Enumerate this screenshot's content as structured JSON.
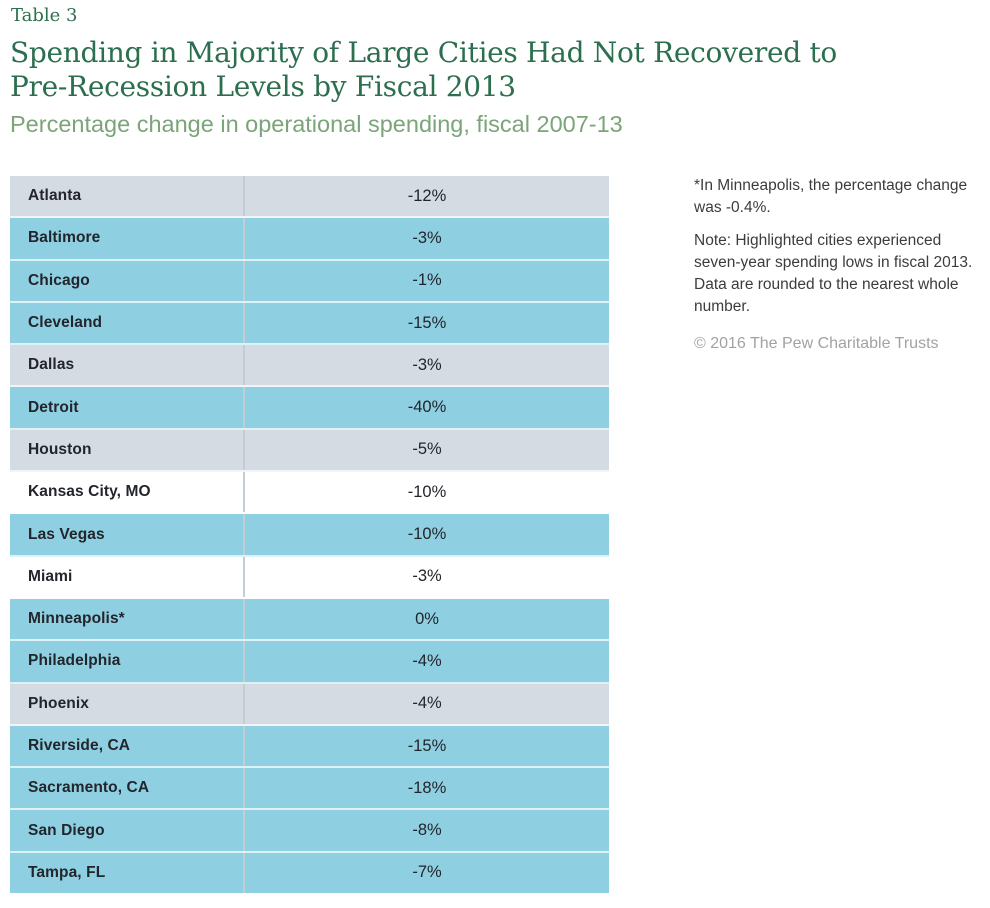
{
  "header": {
    "table_label": "Table 3",
    "title_lines": [
      "Spending in Majority of Large Cities Had Not Recovered to",
      "Pre-Recession Levels by Fiscal 2013"
    ],
    "subtitle": "Percentage change in operational spending, fiscal 2007-13"
  },
  "chart_data": {
    "type": "table",
    "title": "Spending in Majority of Large Cities Had Not Recovered to Pre-Recession Levels by Fiscal 2013",
    "subtitle": "Percentage change in operational spending, fiscal 2007-13",
    "value_unit": "percent",
    "rows": [
      {
        "city": "Atlanta",
        "value": "-12%",
        "value_num": -12,
        "highlighted": false,
        "shade": "gray"
      },
      {
        "city": "Baltimore",
        "value": "-3%",
        "value_num": -3,
        "highlighted": true,
        "shade": "blue"
      },
      {
        "city": "Chicago",
        "value": "-1%",
        "value_num": -1,
        "highlighted": true,
        "shade": "blue"
      },
      {
        "city": "Cleveland",
        "value": "-15%",
        "value_num": -15,
        "highlighted": true,
        "shade": "blue"
      },
      {
        "city": "Dallas",
        "value": "-3%",
        "value_num": -3,
        "highlighted": false,
        "shade": "gray"
      },
      {
        "city": "Detroit",
        "value": "-40%",
        "value_num": -40,
        "highlighted": true,
        "shade": "blue"
      },
      {
        "city": "Houston",
        "value": "-5%",
        "value_num": -5,
        "highlighted": false,
        "shade": "gray"
      },
      {
        "city": "Kansas City, MO",
        "value": "-10%",
        "value_num": -10,
        "highlighted": false,
        "shade": "white"
      },
      {
        "city": "Las Vegas",
        "value": "-10%",
        "value_num": -10,
        "highlighted": true,
        "shade": "blue"
      },
      {
        "city": "Miami",
        "value": "-3%",
        "value_num": -3,
        "highlighted": false,
        "shade": "white"
      },
      {
        "city": "Minneapolis*",
        "value": "0%",
        "value_num": 0,
        "highlighted": true,
        "shade": "blue"
      },
      {
        "city": "Philadelphia",
        "value": "-4%",
        "value_num": -4,
        "highlighted": true,
        "shade": "blue"
      },
      {
        "city": "Phoenix",
        "value": "-4%",
        "value_num": -4,
        "highlighted": false,
        "shade": "gray"
      },
      {
        "city": "Riverside, CA",
        "value": "-15%",
        "value_num": -15,
        "highlighted": true,
        "shade": "blue"
      },
      {
        "city": "Sacramento, CA",
        "value": "-18%",
        "value_num": -18,
        "highlighted": true,
        "shade": "blue"
      },
      {
        "city": "San Diego",
        "value": "-8%",
        "value_num": -8,
        "highlighted": true,
        "shade": "blue"
      },
      {
        "city": "Tampa, FL",
        "value": "-7%",
        "value_num": -7,
        "highlighted": true,
        "shade": "blue"
      }
    ]
  },
  "notes": {
    "asterisk_lines": [
      "*In Minneapolis, the percentage change",
      "was -0.4%."
    ],
    "general_lines": [
      "Note: Highlighted cities experienced",
      "seven-year spending lows in fiscal 2013.",
      "Data are rounded to the nearest whole",
      "number."
    ],
    "copyright": "© 2016 The Pew Charitable Trusts"
  },
  "colors": {
    "title_green": "#2c6f4e",
    "subtitle_green": "#7ba479",
    "row_highlight_blue": "#8ecfe1",
    "row_alt_gray": "#d5dbe3",
    "row_white": "#ffffff",
    "column_divider": "#c3cdd5",
    "row_separator": "#ffffff",
    "table_text": "#23252c",
    "note_text": "#3c3c3c",
    "copyright_gray": "#a2a2a2"
  }
}
